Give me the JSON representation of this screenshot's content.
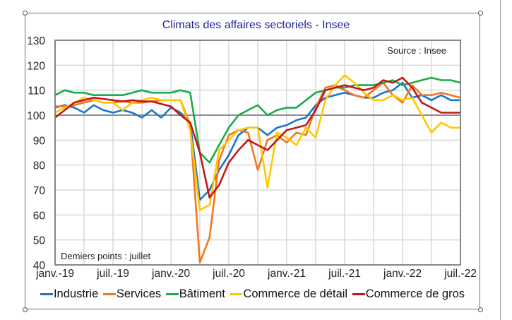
{
  "chart_data": {
    "type": "line",
    "title": "Climats des affaires sectoriels - Insee",
    "source_note": "Source : Insee",
    "footnote": "Demiers points : juillet",
    "xlabel": "",
    "ylabel": "",
    "ylim": [
      40,
      130
    ],
    "yticks": [
      40,
      50,
      60,
      70,
      80,
      90,
      100,
      110,
      120,
      130
    ],
    "reference_line": 100,
    "grid": true,
    "legend_position": "bottom",
    "x_tick_labels": [
      "janv.-19",
      "juil.-19",
      "janv.-20",
      "juil.-20",
      "janv.-21",
      "juil.-21",
      "janv.-22",
      "juil.-22"
    ],
    "x": [
      "2019-01",
      "2019-02",
      "2019-03",
      "2019-04",
      "2019-05",
      "2019-06",
      "2019-07",
      "2019-08",
      "2019-09",
      "2019-10",
      "2019-11",
      "2019-12",
      "2020-01",
      "2020-02",
      "2020-03",
      "2020-04",
      "2020-05",
      "2020-06",
      "2020-07",
      "2020-08",
      "2020-09",
      "2020-10",
      "2020-11",
      "2020-12",
      "2021-01",
      "2021-02",
      "2021-03",
      "2021-04",
      "2021-05",
      "2021-06",
      "2021-07",
      "2021-08",
      "2021-09",
      "2021-10",
      "2021-11",
      "2021-12",
      "2022-01",
      "2022-02",
      "2022-03",
      "2022-04",
      "2022-05",
      "2022-06",
      "2022-07"
    ],
    "series": [
      {
        "name": "Industrie",
        "color": "#1a75c9",
        "values": [
          103,
          104,
          103,
          101,
          104,
          102,
          101,
          102,
          101,
          99,
          102,
          99,
          103,
          101,
          97,
          66,
          70,
          78,
          84,
          92,
          95,
          95,
          92,
          95,
          96,
          98,
          99,
          104,
          107,
          108,
          109,
          108,
          107,
          107,
          109,
          110,
          113,
          107,
          108,
          106,
          108,
          106,
          106
        ]
      },
      {
        "name": "Services",
        "color": "#f07820",
        "values": [
          103.5,
          103.5,
          104,
          105,
          106,
          105,
          105,
          105.5,
          105,
          105,
          105.5,
          106,
          106,
          106,
          96,
          41,
          51,
          82,
          92,
          94,
          93,
          78,
          90,
          92,
          89,
          93,
          92,
          103,
          111,
          112,
          110,
          108,
          107,
          110,
          113,
          108,
          105,
          112,
          108,
          108,
          109,
          108,
          107
        ]
      },
      {
        "name": "Bâtiment",
        "color": "#1aab4a",
        "values": [
          108,
          110,
          109,
          109,
          108,
          108,
          108,
          108,
          109,
          110,
          109,
          109,
          109,
          110,
          109,
          85,
          81,
          88,
          95,
          100,
          102,
          104,
          100,
          102,
          103,
          103,
          106,
          109,
          110,
          111,
          111,
          112,
          112,
          112,
          113,
          114,
          112,
          113,
          114,
          115,
          114,
          114,
          113
        ]
      },
      {
        "name": "Commerce de détail",
        "color": "#ffc800",
        "values": [
          101,
          103,
          105,
          107,
          106,
          105,
          105,
          102,
          105,
          106,
          107,
          106,
          106,
          106,
          94,
          62,
          64,
          86,
          90,
          94,
          95,
          95,
          71,
          93,
          91,
          88,
          95,
          91,
          106,
          112,
          116,
          113,
          109,
          106,
          106,
          108,
          106,
          107,
          100,
          93,
          97,
          95,
          95
        ]
      },
      {
        "name": "Commerce de gros",
        "color": "#c01818",
        "values": [
          99,
          102,
          105,
          106,
          107,
          106.5,
          106,
          105.5,
          106,
          105.5,
          105.5,
          104.5,
          103.5,
          100,
          97,
          85,
          67,
          72,
          81,
          86,
          90,
          88,
          86,
          90,
          94,
          95,
          96,
          102,
          110,
          111,
          112,
          111,
          110,
          111,
          114,
          113,
          115,
          111,
          105,
          103,
          101,
          101,
          101
        ]
      }
    ]
  },
  "legend": {
    "items": [
      {
        "label": "Industrie",
        "color": "#1a75c9"
      },
      {
        "label": "Services",
        "color": "#f07820"
      },
      {
        "label": "Bâtiment",
        "color": "#1aab4a"
      },
      {
        "label": "Commerce de détail",
        "color": "#ffc800"
      },
      {
        "label": "Commerce de gros",
        "color": "#c01818"
      }
    ]
  }
}
